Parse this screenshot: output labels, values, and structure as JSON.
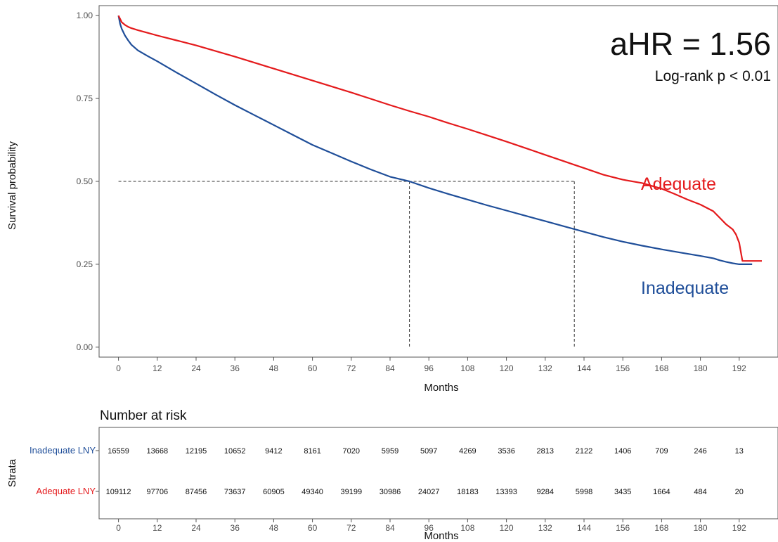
{
  "chart_data": [
    {
      "type": "line",
      "subtype": "kaplan-meier",
      "xlabel": "Months",
      "ylabel": "Survival probability",
      "xlim": [
        -6,
        204
      ],
      "ylim": [
        -0.03,
        1.03
      ],
      "x_ticks": [
        0,
        12,
        24,
        36,
        48,
        60,
        72,
        84,
        96,
        108,
        120,
        132,
        144,
        156,
        168,
        180,
        192
      ],
      "y_ticks": [
        0.0,
        0.25,
        0.5,
        0.75,
        1.0
      ],
      "y_tick_labels": [
        "0.00",
        "0.25",
        "0.50",
        "0.75",
        "1.00"
      ],
      "grid": false,
      "annotations": {
        "hr": "aHR = 1.56",
        "pvalue": "Log-rank p < 0.01"
      },
      "median_reference": {
        "y": 0.5,
        "x_values": [
          90,
          141
        ]
      },
      "series": [
        {
          "name": "Adequate",
          "color": "#e41a1c",
          "x": [
            0,
            0.5,
            1,
            2,
            3,
            4,
            6,
            9,
            12,
            18,
            24,
            30,
            36,
            42,
            48,
            54,
            60,
            66,
            72,
            78,
            84,
            90,
            96,
            102,
            108,
            114,
            120,
            126,
            132,
            138,
            141,
            144,
            150,
            156,
            162,
            168,
            172,
            176,
            180,
            184,
            186,
            188,
            190,
            191,
            192,
            193,
            196,
            199
          ],
          "y": [
            1.0,
            0.99,
            0.98,
            0.972,
            0.966,
            0.962,
            0.956,
            0.948,
            0.94,
            0.925,
            0.91,
            0.893,
            0.876,
            0.858,
            0.84,
            0.822,
            0.804,
            0.786,
            0.768,
            0.749,
            0.73,
            0.712,
            0.695,
            0.676,
            0.658,
            0.639,
            0.62,
            0.6,
            0.58,
            0.56,
            0.55,
            0.54,
            0.52,
            0.505,
            0.495,
            0.478,
            0.462,
            0.445,
            0.43,
            0.41,
            0.39,
            0.37,
            0.355,
            0.34,
            0.315,
            0.26,
            0.26,
            0.26
          ]
        },
        {
          "name": "Inadequate",
          "color": "#1f4e99",
          "x": [
            0,
            0.5,
            1,
            2,
            3,
            4,
            6,
            9,
            12,
            18,
            24,
            30,
            36,
            42,
            48,
            54,
            60,
            66,
            72,
            78,
            84,
            90,
            96,
            102,
            108,
            114,
            120,
            126,
            132,
            138,
            144,
            150,
            156,
            162,
            168,
            174,
            180,
            184,
            186,
            188,
            190,
            192,
            196
          ],
          "y": [
            1.0,
            0.975,
            0.96,
            0.94,
            0.925,
            0.912,
            0.895,
            0.878,
            0.862,
            0.828,
            0.795,
            0.762,
            0.73,
            0.7,
            0.67,
            0.64,
            0.61,
            0.585,
            0.56,
            0.536,
            0.514,
            0.5,
            0.48,
            0.462,
            0.445,
            0.428,
            0.412,
            0.396,
            0.38,
            0.364,
            0.348,
            0.332,
            0.318,
            0.306,
            0.295,
            0.285,
            0.275,
            0.268,
            0.262,
            0.257,
            0.253,
            0.25,
            0.25
          ]
        }
      ],
      "legend_labels": [
        {
          "text": "Adequate",
          "color": "#e41a1c"
        },
        {
          "text": "Inadequate",
          "color": "#1f4e99"
        }
      ]
    },
    {
      "type": "table",
      "title": "Number at risk",
      "ylabel": "Strata",
      "xlabel": "Months",
      "x_ticks": [
        0,
        12,
        24,
        36,
        48,
        60,
        72,
        84,
        96,
        108,
        120,
        132,
        144,
        156,
        168,
        180,
        192
      ],
      "rows": [
        {
          "label": "Inadequate LNY",
          "color": "#1f4e99",
          "values": [
            "16559",
            "13668",
            "12195",
            "10652",
            "9412",
            "8161",
            "7020",
            "5959",
            "5097",
            "4269",
            "3536",
            "2813",
            "2122",
            "1406",
            "709",
            "246",
            "13"
          ]
        },
        {
          "label": "Adequate LNY",
          "color": "#e41a1c",
          "values": [
            "109112",
            "97706",
            "87456",
            "73637",
            "60905",
            "49340",
            "39199",
            "30986",
            "24027",
            "18183",
            "13393",
            "9284",
            "5998",
            "3435",
            "1664",
            "484",
            "20"
          ]
        }
      ]
    }
  ]
}
